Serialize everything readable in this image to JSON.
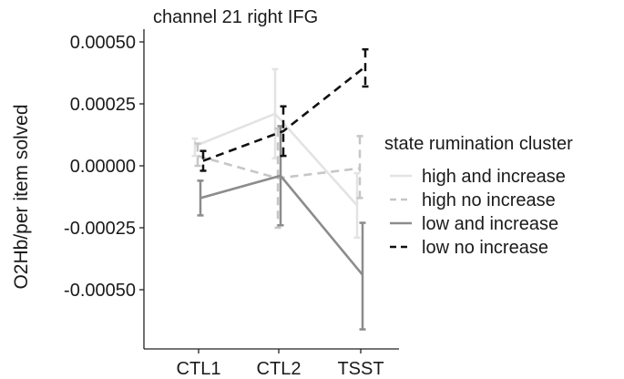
{
  "chart_data": {
    "type": "line",
    "title": "channel 21 right IFG",
    "xlabel": "",
    "ylabel": "O2Hb/per item solved",
    "categories": [
      "CTL1",
      "CTL2",
      "TSST"
    ],
    "ylim": [
      -0.00075,
      0.00055
    ],
    "yticks": [
      0.0005,
      0.00025,
      0.0,
      -0.00025,
      -0.0005
    ],
    "ytick_labels": [
      "0.00050",
      "0.00025",
      "0.00000",
      "-0.00025",
      "-0.00050"
    ],
    "grid": false,
    "legend": {
      "title": "state rumination cluster",
      "position": "right"
    },
    "series": [
      {
        "name": "high and increase",
        "color": "#e3e3e3",
        "dash": "solid",
        "values": [
          8e-05,
          0.00021,
          -0.00016
        ],
        "err_low": [
          4e-05,
          3e-05,
          -0.00029
        ],
        "err_high": [
          0.00011,
          0.00039,
          -3e-05
        ]
      },
      {
        "name": "high no increase",
        "color": "#c6c6c6",
        "dash": "dashed",
        "values": [
          4e-05,
          -5e-05,
          -1e-05
        ],
        "err_low": [
          0.0,
          -0.00025,
          -0.00013
        ],
        "err_high": [
          9e-05,
          0.00015,
          0.00012
        ]
      },
      {
        "name": "low and increase",
        "color": "#8c8c8c",
        "dash": "solid",
        "values": [
          -0.00013,
          -4e-05,
          -0.00044
        ],
        "err_low": [
          -0.0002,
          -0.00024,
          -0.00066
        ],
        "err_high": [
          -6e-05,
          0.00016,
          -0.00023
        ]
      },
      {
        "name": "low no increase",
        "color": "#111111",
        "dash": "dashed",
        "values": [
          2e-05,
          0.00014,
          0.0004
        ],
        "err_low": [
          -2e-05,
          4e-05,
          0.00032
        ],
        "err_high": [
          6e-05,
          0.00024,
          0.00047
        ]
      }
    ]
  }
}
